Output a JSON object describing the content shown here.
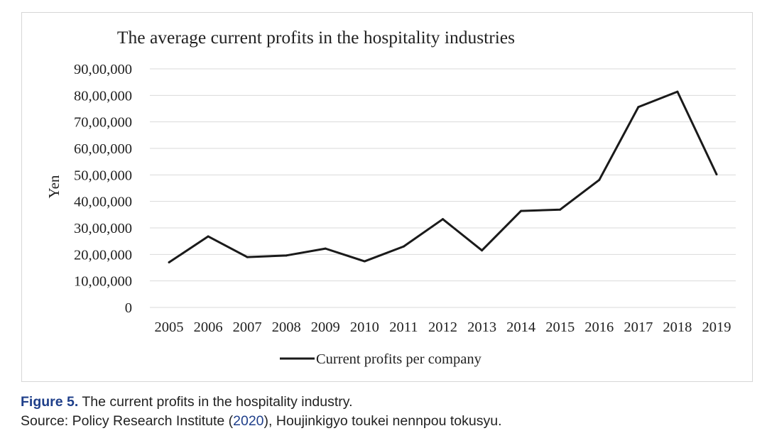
{
  "chart_data": {
    "type": "line",
    "title": "The average current profits in the hospitality industries",
    "ylabel": "Yen",
    "xlabel": "",
    "categories": [
      "2005",
      "2006",
      "2007",
      "2008",
      "2009",
      "2010",
      "2011",
      "2012",
      "2013",
      "2014",
      "2015",
      "2016",
      "2017",
      "2018",
      "2019"
    ],
    "series": [
      {
        "name": "Current profits per company",
        "color": "#1a1a1a",
        "values": [
          1700000,
          2680000,
          1900000,
          1960000,
          2220000,
          1740000,
          2300000,
          3330000,
          2150000,
          3640000,
          3690000,
          4810000,
          7560000,
          8140000,
          5020000
        ]
      }
    ],
    "ylim": [
      0,
      9000000
    ],
    "yticks": [
      {
        "value": 0,
        "label": "0"
      },
      {
        "value": 1000000,
        "label": "10,00,000"
      },
      {
        "value": 2000000,
        "label": "20,00,000"
      },
      {
        "value": 3000000,
        "label": "30,00,000"
      },
      {
        "value": 4000000,
        "label": "40,00,000"
      },
      {
        "value": 5000000,
        "label": "50,00,000"
      },
      {
        "value": 6000000,
        "label": "60,00,000"
      },
      {
        "value": 7000000,
        "label": "70,00,000"
      },
      {
        "value": 8000000,
        "label": "80,00,000"
      },
      {
        "value": 9000000,
        "label": "90,00,000"
      }
    ],
    "grid": true,
    "gridColor": "#d9d9d9",
    "legend": "bottom"
  },
  "caption": {
    "figure_label": "Figure 5.",
    "figure_text": "The current profits in the hospitality industry.",
    "source_prefix": "Source: Policy Research Institute (",
    "source_year": "2020",
    "source_suffix": "), Houjinkigyo toukei nennpou tokusyu."
  }
}
